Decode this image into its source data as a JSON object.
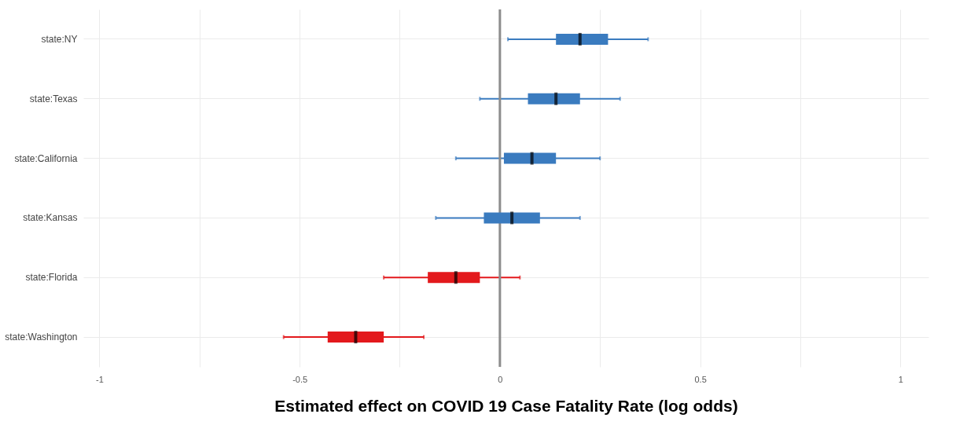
{
  "chart_data": {
    "type": "box",
    "orientation": "horizontal",
    "xlabel": "Estimated effect on COVID 19 Case Fatality Rate (log odds)",
    "categories": [
      "state:NY",
      "state:Texas",
      "state:California",
      "state:Kansas",
      "state:Florida",
      "state:Washington"
    ],
    "boxes": [
      {
        "low": 0.02,
        "q1": 0.14,
        "median": 0.2,
        "q3": 0.27,
        "high": 0.37
      },
      {
        "low": -0.05,
        "q1": 0.07,
        "median": 0.14,
        "q3": 0.2,
        "high": 0.3
      },
      {
        "low": -0.11,
        "q1": 0.01,
        "median": 0.08,
        "q3": 0.14,
        "high": 0.25
      },
      {
        "low": -0.16,
        "q1": -0.04,
        "median": 0.03,
        "q3": 0.1,
        "high": 0.2
      },
      {
        "low": -0.29,
        "q1": -0.18,
        "median": -0.11,
        "q3": -0.05,
        "high": 0.05
      },
      {
        "low": -0.54,
        "q1": -0.43,
        "median": -0.36,
        "q3": -0.29,
        "high": -0.19
      }
    ],
    "colors": [
      "#3a7bbf",
      "#3a7bbf",
      "#3a7bbf",
      "#3a7bbf",
      "#e3191c",
      "#e3191c"
    ],
    "xlim": [
      -1.04,
      1.07
    ],
    "xticks": [
      -1,
      {
        "value": -0.75,
        "label": null
      },
      -0.5,
      {
        "value": -0.25,
        "label": null
      },
      0,
      {
        "value": 0.25,
        "label": null
      },
      0.5,
      {
        "value": 0.75,
        "label": null
      },
      1
    ],
    "ref_lines": [
      {
        "axis": "x",
        "value": 0,
        "color": "#8c8c8c"
      }
    ],
    "grid": true,
    "legend": false
  }
}
